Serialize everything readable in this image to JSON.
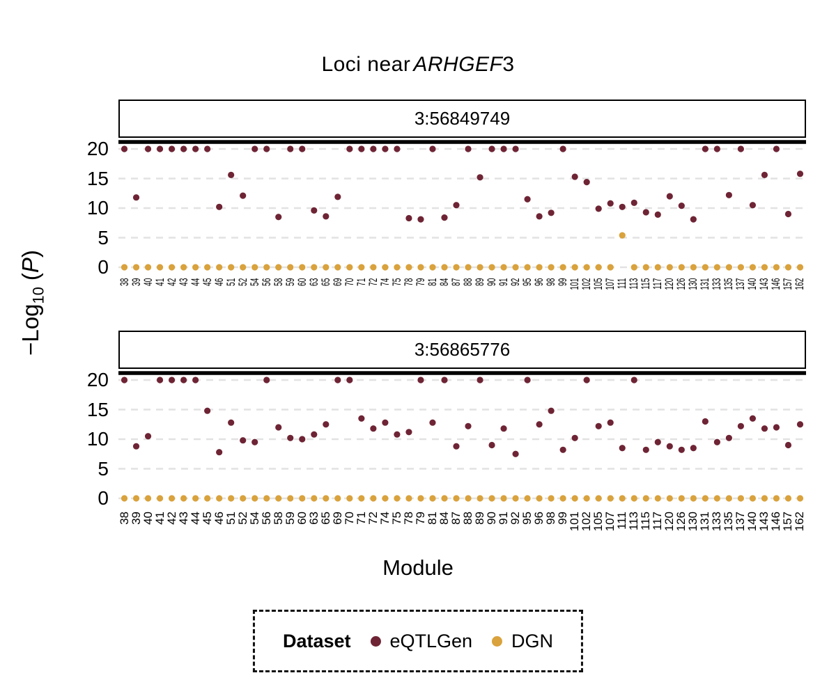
{
  "title": {
    "prefix": "Loci near",
    "gene_italic": "ARHGEF",
    "gene_suffix": "3"
  },
  "y_axis": {
    "neg_log": "−Log",
    "sub": "10",
    "open": "(",
    "p": "P",
    "close": ")"
  },
  "legend": {
    "title": "Dataset",
    "items": [
      {
        "label": "eQTLGen",
        "color": "#6e2434"
      },
      {
        "label": "DGN",
        "color": "#d9a23c"
      }
    ]
  },
  "chart_data": {
    "type": "scatter",
    "title": "Loci near ARHGEF3",
    "xlabel": "Module",
    "ylabel": "-Log10(P)",
    "ylim": [
      0,
      20
    ],
    "yticks": [
      0,
      5,
      10,
      15,
      20
    ],
    "grid": "dashed horizontal gridlines at each y tick",
    "legend_position": "bottom",
    "categories": [
      "38",
      "39",
      "40",
      "41",
      "42",
      "43",
      "44",
      "45",
      "46",
      "51",
      "52",
      "54",
      "56",
      "58",
      "59",
      "60",
      "63",
      "65",
      "69",
      "70",
      "71",
      "72",
      "74",
      "75",
      "78",
      "79",
      "81",
      "84",
      "87",
      "88",
      "89",
      "90",
      "91",
      "92",
      "95",
      "96",
      "98",
      "99",
      "101",
      "102",
      "105",
      "107",
      "111",
      "113",
      "115",
      "117",
      "120",
      "126",
      "130",
      "131",
      "133",
      "135",
      "137",
      "140",
      "143",
      "146",
      "157",
      "162"
    ],
    "panels": [
      {
        "label": "3:56849749",
        "series": [
          {
            "name": "eQTLGen",
            "color": "#6e2434",
            "values": [
              20,
              11.8,
              20,
              20,
              20,
              20,
              20,
              20,
              10.2,
              15.6,
              12.1,
              20,
              20,
              8.5,
              20,
              20,
              9.6,
              8.6,
              11.9,
              20,
              20,
              20,
              20,
              20,
              8.3,
              8.1,
              20,
              8.4,
              10.5,
              20,
              15.2,
              20,
              20,
              20,
              11.5,
              8.6,
              9.2,
              20,
              15.3,
              14.4,
              9.9,
              10.8,
              10.2,
              10.9,
              9.3,
              8.9,
              12.0,
              10.4,
              8.1,
              20,
              20,
              12.2,
              20,
              10.5,
              15.6,
              20,
              9.0,
              15.8
            ]
          },
          {
            "name": "DGN",
            "color": "#d9a23c",
            "values": [
              0,
              0,
              0,
              0,
              0,
              0,
              0,
              0,
              0,
              0,
              0,
              0,
              0,
              0,
              0,
              0,
              0,
              0,
              0,
              0,
              0,
              0,
              0,
              0,
              0,
              0,
              0,
              0,
              0,
              0,
              0,
              0,
              0,
              0,
              0,
              0,
              0,
              0,
              0,
              0,
              0,
              0,
              5.4,
              0,
              0,
              0,
              0,
              0,
              0,
              0,
              0,
              0,
              0,
              0,
              0,
              0,
              0,
              0
            ]
          }
        ]
      },
      {
        "label": "3:56865776",
        "series": [
          {
            "name": "eQTLGen",
            "color": "#6e2434",
            "values": [
              20,
              8.8,
              10.5,
              20,
              20,
              20,
              20,
              14.8,
              7.8,
              12.8,
              9.8,
              9.5,
              20,
              12.0,
              10.2,
              10.0,
              10.8,
              12.5,
              20,
              20,
              13.5,
              11.8,
              12.8,
              10.8,
              11.2,
              20,
              12.8,
              20,
              8.8,
              12.2,
              20,
              9.0,
              11.8,
              7.5,
              20,
              12.5,
              14.8,
              8.2,
              10.2,
              20,
              12.2,
              12.8,
              8.5,
              20,
              8.2,
              9.5,
              8.8,
              8.2,
              8.5,
              13.0,
              9.5,
              10.2,
              12.2,
              13.5,
              11.8,
              12.0,
              9.0,
              12.5
            ]
          },
          {
            "name": "DGN",
            "color": "#d9a23c",
            "values": [
              0,
              0,
              0,
              0,
              0,
              0,
              0,
              0,
              0,
              0,
              0,
              0,
              0,
              0,
              0,
              0,
              0,
              0,
              0,
              0,
              0,
              0,
              0,
              0,
              0,
              0,
              0,
              0,
              0,
              0,
              0,
              0,
              0,
              0,
              0,
              0,
              0,
              0,
              0,
              0,
              0,
              0,
              0,
              0,
              0,
              0,
              0,
              0,
              0,
              0,
              0,
              0,
              0,
              0,
              0,
              0,
              0,
              0
            ]
          }
        ]
      }
    ]
  }
}
